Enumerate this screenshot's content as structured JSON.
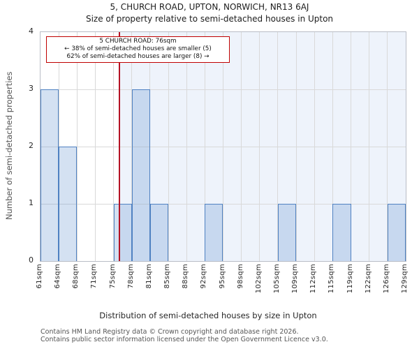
{
  "title": {
    "line1": "5, CHURCH ROAD, UPTON, NORWICH, NR13 6AJ",
    "line2": "Size of property relative to semi-detached houses in Upton"
  },
  "annotation": {
    "line1": "5 CHURCH ROAD: 76sqm",
    "line2": "← 38% of semi-detached houses are smaller (5)",
    "line3": "62% of semi-detached houses are larger (8) →"
  },
  "chart_data": {
    "type": "bar",
    "title": "5, CHURCH ROAD, UPTON, NORWICH, NR13 6AJ",
    "subtitle": "Size of property relative to semi-detached houses in Upton",
    "xlabel": "Distribution of semi-detached houses by size in Upton",
    "ylabel": "Number of semi-detached properties",
    "ylim": [
      0,
      4
    ],
    "yticks": [
      0,
      1,
      2,
      3,
      4
    ],
    "grid": true,
    "legend": false,
    "bin_edges_sqm": [
      61,
      64,
      68,
      71,
      75,
      78,
      81,
      85,
      88,
      92,
      95,
      98,
      102,
      105,
      109,
      112,
      115,
      119,
      122,
      126,
      129
    ],
    "bin_labels": [
      "61sqm",
      "64sqm",
      "68sqm",
      "71sqm",
      "75sqm",
      "78sqm",
      "81sqm",
      "85sqm",
      "88sqm",
      "92sqm",
      "95sqm",
      "98sqm",
      "102sqm",
      "105sqm",
      "109sqm",
      "112sqm",
      "115sqm",
      "119sqm",
      "122sqm",
      "126sqm",
      "129sqm"
    ],
    "values": [
      3,
      2,
      0,
      0,
      1,
      3,
      1,
      0,
      0,
      1,
      0,
      0,
      0,
      1,
      0,
      0,
      1,
      0,
      0,
      1
    ],
    "marker_sqm": 76,
    "marker_label": "5 CHURCH ROAD: 76sqm",
    "smaller_pct": 38,
    "smaller_count": 5,
    "larger_pct": 62,
    "larger_count": 8
  },
  "footer": {
    "line1": "Contains HM Land Registry data © Crown copyright and database right 2026.",
    "line2": "Contains public sector information licensed under the Open Government Licence v3.0."
  },
  "colors": {
    "bar_fill": "#6394cf",
    "bar_fill_alpha": "0.28",
    "bar_edge": "#4f81c1",
    "marker_line": "#b51224",
    "annotation_border": "#c00000",
    "highlight_region": "#eef3fb",
    "grid": "#d9d9d9",
    "spine": "#b9bdc6"
  }
}
